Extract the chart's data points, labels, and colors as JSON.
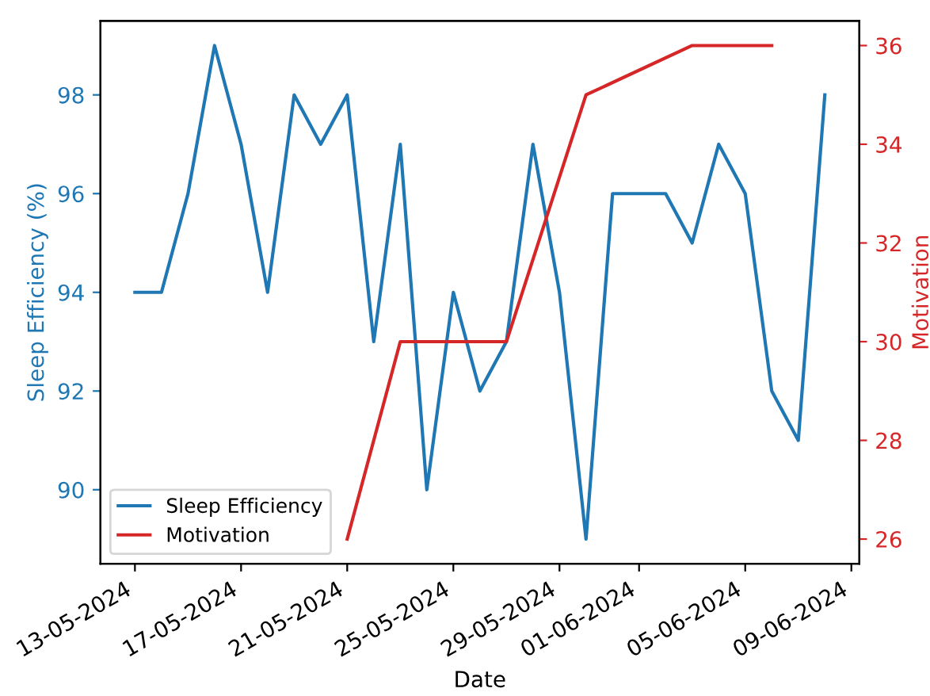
{
  "chart_data": {
    "type": "line",
    "xlabel": "Date",
    "ylabel": "Sleep Efficiency (%)",
    "y2label": "Motivation",
    "x": [
      "2024-05-13",
      "2024-05-14",
      "2024-05-15",
      "2024-05-16",
      "2024-05-17",
      "2024-05-18",
      "2024-05-19",
      "2024-05-20",
      "2024-05-21",
      "2024-05-22",
      "2024-05-23",
      "2024-05-24",
      "2024-05-25",
      "2024-05-26",
      "2024-05-27",
      "2024-05-28",
      "2024-05-29",
      "2024-05-30",
      "2024-05-31",
      "2024-06-01",
      "2024-06-02",
      "2024-06-03",
      "2024-06-04",
      "2024-06-05",
      "2024-06-06",
      "2024-06-07",
      "2024-06-08"
    ],
    "series": [
      {
        "name": "Sleep Efficiency",
        "color": "#1f77b4",
        "values": [
          94,
          94,
          96,
          99,
          97,
          94,
          98,
          97,
          98,
          93,
          97,
          90,
          94,
          92,
          93,
          97,
          94,
          89,
          96,
          96,
          96,
          95,
          97,
          96,
          92,
          91,
          98
        ]
      },
      {
        "name": "Motivation",
        "color": "#d62728",
        "axis": "y2",
        "x": [
          "2024-05-21",
          "2024-05-23",
          "2024-05-27",
          "2024-05-30",
          "2024-06-03",
          "2024-06-06"
        ],
        "values": [
          26,
          30,
          30,
          35,
          36,
          36
        ]
      }
    ],
    "xlim": [
      "2024-05-11T16:48",
      "2024-06-09T07:12"
    ],
    "xticks": [
      {
        "value": "2024-05-13",
        "label": "13-05-2024"
      },
      {
        "value": "2024-05-17",
        "label": "17-05-2024"
      },
      {
        "value": "2024-05-21",
        "label": "21-05-2024"
      },
      {
        "value": "2024-05-25",
        "label": "25-05-2024"
      },
      {
        "value": "2024-05-29",
        "label": "29-05-2024"
      },
      {
        "value": "2024-06-01",
        "label": "01-06-2024"
      },
      {
        "value": "2024-06-05",
        "label": "05-06-2024"
      },
      {
        "value": "2024-06-09",
        "label": "09-06-2024"
      }
    ],
    "ylim": [
      88.5,
      99.5
    ],
    "yticks": [
      90,
      92,
      94,
      96,
      98
    ],
    "y2lim": [
      25.5,
      36.5
    ],
    "y2ticks": [
      26,
      28,
      30,
      32,
      34,
      36
    ],
    "legend": "lower left",
    "grid": false,
    "marker": "none",
    "line_style": "solid"
  }
}
